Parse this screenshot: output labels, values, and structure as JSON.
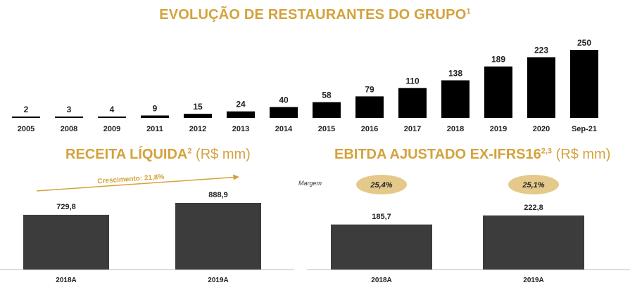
{
  "colors": {
    "gold": "#d4a23c",
    "black": "#000000",
    "dark_gray": "#3c3c3c",
    "pill_fill": "#e4c98b",
    "axis": "#bbbbbb"
  },
  "header": {
    "title": "EVOLUÇÃO DE RESTAURANTES DO GRUPO",
    "title_sup": "1"
  },
  "receita": {
    "title": "RECEITA LÍQUIDA",
    "title_sup": "2",
    "unit": "(R$ mm)",
    "growth_label": "Crescimento: 21,8%"
  },
  "ebitda": {
    "title": "EBITDA AJUSTADO EX-IFRS16",
    "title_sup": "2,3",
    "unit": "(R$ mm)",
    "margin_label": "Margem"
  },
  "chart_data": [
    {
      "type": "bar",
      "title": "EVOLUÇÃO DE RESTAURANTES DO GRUPO",
      "categories": [
        "2005",
        "2008",
        "2009",
        "2011",
        "2012",
        "2013",
        "2014",
        "2015",
        "2016",
        "2017",
        "2018",
        "2019",
        "2020",
        "Sep-21"
      ],
      "values": [
        2,
        3,
        4,
        9,
        15,
        24,
        40,
        58,
        79,
        110,
        138,
        189,
        223,
        250
      ],
      "value_labels": [
        "2",
        "3",
        "4",
        "9",
        "15",
        "24",
        "40",
        "58",
        "79",
        "110",
        "138",
        "189",
        "223",
        "250"
      ],
      "ylim": [
        0,
        250
      ]
    },
    {
      "type": "bar",
      "title": "RECEITA LÍQUIDA (R$ mm)",
      "categories": [
        "2018A",
        "2019A"
      ],
      "values": [
        729.8,
        888.9
      ],
      "value_labels": [
        "729,8",
        "888,9"
      ],
      "ylim": [
        0,
        888.9
      ]
    },
    {
      "type": "bar",
      "title": "EBITDA AJUSTADO EX-IFRS16 (R$ mm)",
      "categories": [
        "2018A",
        "2019A"
      ],
      "values": [
        185.7,
        222.8
      ],
      "value_labels": [
        "185,7",
        "222,8"
      ],
      "margins": [
        "25,4%",
        "25,1%"
      ],
      "ylim": [
        0,
        222.8
      ]
    }
  ]
}
